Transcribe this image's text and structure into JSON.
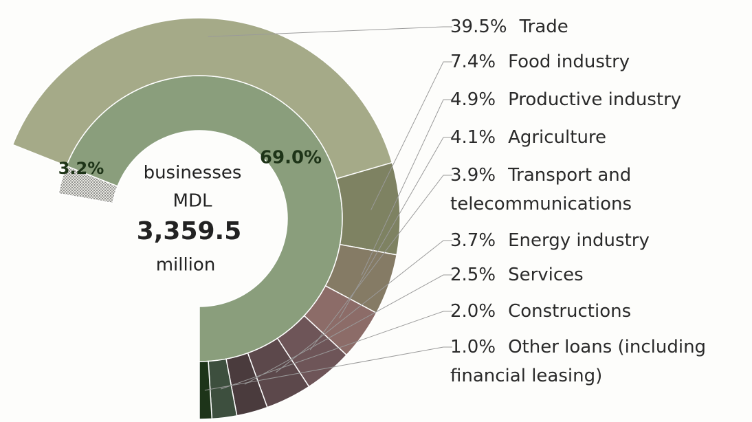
{
  "chart_data": {
    "type": "donut",
    "center_text": [
      "businesses",
      "MDL",
      "3,359.5",
      "million"
    ],
    "inner": {
      "values": [
        3.2,
        69.0
      ],
      "value_labels": [
        "3.2%",
        "69.0%"
      ],
      "colors": [
        "pattern",
        "#8a9e7c"
      ]
    },
    "outer": {
      "categories": [
        "Trade",
        "Food industry",
        "Productive industry",
        "Agriculture",
        "Transport and telecommunications",
        "Energy industry",
        "Services",
        "Constructions",
        "Other loans (including financial leasing)"
      ],
      "values": [
        39.5,
        7.4,
        4.9,
        4.1,
        3.9,
        3.7,
        2.5,
        2.0,
        1.0
      ],
      "value_labels": [
        "39.5%",
        "7.4%",
        "4.9%",
        "4.1%",
        "3.9%",
        "3.7%",
        "2.5%",
        "2.0%",
        "1.0%"
      ],
      "colors": [
        "#a5aa88",
        "#7e8262",
        "#857b65",
        "#8c6c68",
        "#6e5558",
        "#5c484b",
        "#4a3b3d",
        "#3d4f3e",
        "#1d3419"
      ]
    }
  }
}
